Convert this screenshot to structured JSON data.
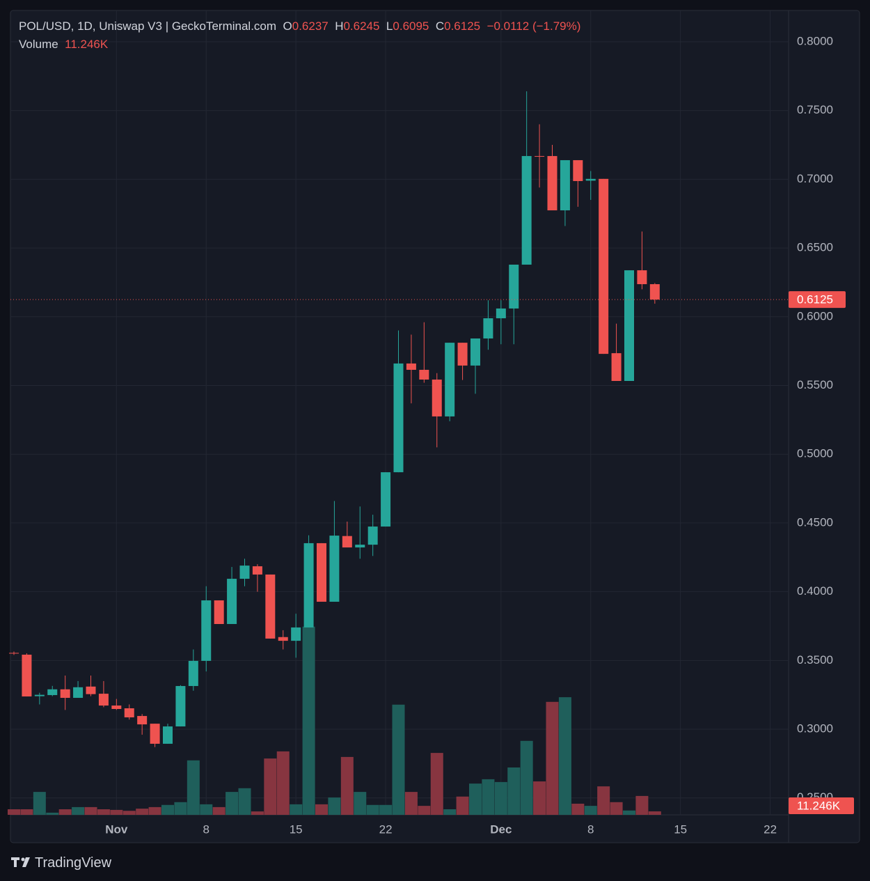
{
  "chart_data": {
    "type": "candlestick",
    "title": "POL/USD, 1D, Uniswap V3 | GeckoTerminal.com",
    "ohlc_labels": [
      "O",
      "H",
      "L",
      "C"
    ],
    "change_label": "−0.0112 (−1.79%)",
    "volume_title": "Volume",
    "volume_value_label": "11.246K",
    "brand": "TradingView",
    "up_color": "#26a69a",
    "down_color": "#ef5350",
    "up_volume_color": "#1f5f5b",
    "down_volume_color": "#873540",
    "grid": true,
    "x": [
      "Oct 24",
      "Oct 25",
      "Oct 26",
      "Oct 27",
      "Oct 28",
      "Oct 29",
      "Oct 30",
      "Oct 31",
      "Nov 1",
      "Nov 2",
      "Nov 3",
      "Nov 4",
      "Nov 5",
      "Nov 6",
      "Nov 7",
      "Nov 8",
      "Nov 9",
      "Nov 10",
      "Nov 11",
      "Nov 12",
      "Nov 13",
      "Nov 14",
      "Nov 15",
      "Nov 16",
      "Nov 17",
      "Nov 18",
      "Nov 19",
      "Nov 20",
      "Nov 21",
      "Nov 22",
      "Nov 23",
      "Nov 24",
      "Nov 25",
      "Nov 26",
      "Nov 27",
      "Nov 28",
      "Nov 29",
      "Nov 30",
      "Dec 1",
      "Dec 2",
      "Dec 3",
      "Dec 4",
      "Dec 5",
      "Dec 6",
      "Dec 7",
      "Dec 8",
      "Dec 9",
      "Dec 10",
      "Dec 11",
      "Dec 12",
      "Dec 13"
    ],
    "open": [
      0.3555,
      0.3542,
      0.324,
      0.3248,
      0.329,
      0.3228,
      0.331,
      0.3258,
      0.3172,
      0.3152,
      0.3096,
      0.304,
      0.2894,
      0.302,
      0.3314,
      0.3497,
      0.3937,
      0.3765,
      0.4094,
      0.4185,
      0.4125,
      0.367,
      0.3643,
      0.374,
      0.4353,
      0.3927,
      0.4405,
      0.4322,
      0.4342,
      0.4474,
      0.4869,
      0.566,
      0.5614,
      0.5543,
      0.5275,
      0.5811,
      0.5645,
      0.5842,
      0.5989,
      0.606,
      0.6379,
      0.7169,
      0.7169,
      0.6774,
      0.7139,
      0.699,
      0.7003,
      0.5735,
      0.5533,
      0.6338,
      0.6237
    ],
    "high": [
      0.3565,
      0.3552,
      0.3265,
      0.3315,
      0.339,
      0.335,
      0.339,
      0.335,
      0.322,
      0.318,
      0.311,
      0.304,
      0.304,
      0.332,
      0.358,
      0.404,
      0.3937,
      0.418,
      0.424,
      0.42,
      0.4125,
      0.372,
      0.384,
      0.441,
      0.4353,
      0.466,
      0.451,
      0.462,
      0.456,
      0.4869,
      0.59,
      0.587,
      0.596,
      0.559,
      0.5811,
      0.5811,
      0.5842,
      0.612,
      0.612,
      0.6379,
      0.764,
      0.74,
      0.725,
      0.7139,
      0.7139,
      0.706,
      0.7003,
      0.595,
      0.6338,
      0.662,
      0.6245
    ],
    "low": [
      0.354,
      0.3238,
      0.318,
      0.324,
      0.314,
      0.3228,
      0.324,
      0.316,
      0.314,
      0.307,
      0.296,
      0.287,
      0.2894,
      0.302,
      0.328,
      0.342,
      0.3765,
      0.3765,
      0.404,
      0.4,
      0.3659,
      0.358,
      0.352,
      0.374,
      0.3927,
      0.3927,
      0.4322,
      0.424,
      0.426,
      0.4474,
      0.4869,
      0.537,
      0.552,
      0.505,
      0.524,
      0.554,
      0.544,
      0.576,
      0.58,
      0.58,
      0.6379,
      0.694,
      0.6774,
      0.666,
      0.68,
      0.685,
      0.573,
      0.5533,
      0.5533,
      0.62,
      0.6095
    ],
    "close": [
      0.3552,
      0.3238,
      0.325,
      0.329,
      0.3228,
      0.3305,
      0.3255,
      0.3172,
      0.3147,
      0.3086,
      0.3035,
      0.2894,
      0.302,
      0.3314,
      0.3497,
      0.3937,
      0.3765,
      0.4094,
      0.419,
      0.4125,
      0.3659,
      0.3643,
      0.374,
      0.4353,
      0.3927,
      0.4408,
      0.4322,
      0.4342,
      0.4474,
      0.4869,
      0.566,
      0.5614,
      0.5543,
      0.5275,
      0.5811,
      0.5645,
      0.5842,
      0.5989,
      0.606,
      0.6379,
      0.7169,
      0.7165,
      0.6774,
      0.7139,
      0.6987,
      0.7003,
      0.573,
      0.5533,
      0.6338,
      0.6237,
      0.6125
    ],
    "volume": [
      18,
      18,
      74,
      7,
      18,
      25,
      25,
      18,
      16,
      13,
      20,
      25,
      32,
      41,
      176,
      34,
      25,
      74,
      86,
      11,
      182,
      205,
      34,
      608,
      34,
      56,
      187,
      74,
      32,
      32,
      356,
      74,
      29,
      200,
      18,
      59,
      101,
      115,
      106,
      153,
      239,
      108,
      365,
      380,
      36,
      29,
      92,
      41,
      14,
      61,
      11.246
    ],
    "volume_ylim": [
      0,
      675
    ],
    "xlim": [
      "Oct 24",
      "Dec 23"
    ],
    "xticks": [
      {
        "value": "Nov 1",
        "label": "Nov"
      },
      {
        "value": "Nov 8",
        "label": "8"
      },
      {
        "value": "Nov 15",
        "label": "15"
      },
      {
        "value": "Nov 22",
        "label": "22"
      },
      {
        "value": "Dec 1",
        "label": "Dec"
      },
      {
        "value": "Dec 8",
        "label": "8"
      },
      {
        "value": "Dec 15",
        "label": "15"
      },
      {
        "value": "Dec 22",
        "label": "22"
      }
    ],
    "ylim": [
      0.2377,
      0.8228
    ],
    "yticks": [
      {
        "value": 0.25,
        "label": "0.2500"
      },
      {
        "value": 0.3,
        "label": "0.3000"
      },
      {
        "value": 0.35,
        "label": "0.3500"
      },
      {
        "value": 0.4,
        "label": "0.4000"
      },
      {
        "value": 0.45,
        "label": "0.4500"
      },
      {
        "value": 0.5,
        "label": "0.5000"
      },
      {
        "value": 0.55,
        "label": "0.5500"
      },
      {
        "value": 0.6,
        "label": "0.6000"
      },
      {
        "value": 0.65,
        "label": "0.6500"
      },
      {
        "value": 0.7,
        "label": "0.7000"
      },
      {
        "value": 0.75,
        "label": "0.7500"
      },
      {
        "value": 0.8,
        "label": "0.8000"
      }
    ]
  }
}
